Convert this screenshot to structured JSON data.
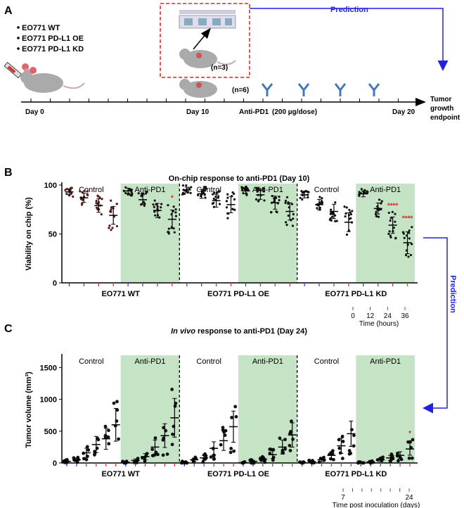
{
  "panelA": {
    "label": "A",
    "legend": [
      "EO771 WT",
      "EO771 PD-L1 OE",
      "EO771 PD-L1 KD"
    ],
    "n_chip": "(n=3)",
    "n_mice": "(n=6)",
    "prediction": "Prediction",
    "timeline": {
      "day0": "Day 0",
      "day10": "Day 10",
      "antipd1": "Anti-PD1",
      "dose": "(200 µg/dose)",
      "day20": "Day 20",
      "endpoint": [
        "Tumor",
        "growth",
        "endpoint"
      ]
    },
    "colors": {
      "accent": "#2222dd",
      "box": "#e02020",
      "treatment": "#c5e3c5"
    }
  },
  "side_prediction": "Prediction",
  "chart_data": [
    {
      "panel": "B",
      "type": "scatter",
      "title": "On-chip response to anti-PD1 (Day 10)",
      "ylabel": "Viability on chip (%)",
      "ylim": [
        0,
        100
      ],
      "yticks": [
        0,
        50,
        100
      ],
      "groups": [
        "EO771 WT",
        "EO771 PD-L1 OE",
        "EO771 PD-L1 KD"
      ],
      "conditions": [
        "Control",
        "Anti-PD1"
      ],
      "time_legend": {
        "ticks": [
          "0",
          "12",
          "24",
          "36"
        ],
        "label": "Time (hours)"
      },
      "series": [
        {
          "group": "EO771 WT",
          "condition": "Control",
          "means": [
            93,
            87,
            79,
            69
          ],
          "sig": [
            "",
            "",
            "",
            ""
          ]
        },
        {
          "group": "EO771 WT",
          "condition": "Anti-PD1",
          "means": [
            94,
            85,
            74,
            65
          ],
          "sig": [
            "",
            "",
            "",
            "*"
          ]
        },
        {
          "group": "EO771 PD-L1 OE",
          "condition": "Control",
          "means": [
            95,
            91,
            84,
            80
          ],
          "sig": [
            "",
            "",
            "",
            ""
          ]
        },
        {
          "group": "EO771 PD-L1 OE",
          "condition": "Anti-PD1",
          "means": [
            94,
            90,
            82,
            73
          ],
          "sig": [
            "",
            "",
            "",
            ""
          ]
        },
        {
          "group": "EO771 PD-L1 KD",
          "condition": "Control",
          "means": [
            90,
            80,
            73,
            62
          ],
          "sig": [
            "",
            "",
            "",
            ""
          ]
        },
        {
          "group": "EO771 PD-L1 KD",
          "condition": "Anti-PD1",
          "means": [
            91,
            76,
            59,
            41
          ],
          "sig": [
            "",
            "",
            "****",
            "****"
          ]
        }
      ]
    },
    {
      "panel": "C",
      "type": "scatter",
      "title_italic": "In vivo",
      "title": " response to anti-PD1 (Day 24)",
      "ylabel": "Tumor volume (mm³)",
      "ylim": [
        0,
        1700
      ],
      "yticks": [
        0,
        500,
        1000,
        1500
      ],
      "groups": [
        "EO771 WT",
        "EO771 PD-L1 OE",
        "EO771 PD-L1 KD"
      ],
      "conditions": [
        "Control",
        "Anti-PD1"
      ],
      "time_legend": {
        "ticks": [
          "7",
          "24"
        ],
        "label": "Time post inoculation (days)"
      },
      "series": [
        {
          "group": "EO771 WT",
          "condition": "Control",
          "means": [
            25,
            50,
            160,
            290,
            380,
            600
          ],
          "sig": [
            "",
            "",
            "",
            "",
            "",
            ""
          ]
        },
        {
          "group": "EO771 WT",
          "condition": "Anti-PD1",
          "means": [
            10,
            40,
            100,
            250,
            430,
            710
          ],
          "sig": [
            "",
            "",
            "",
            "",
            "",
            ""
          ]
        },
        {
          "group": "EO771 PD-L1 OE",
          "condition": "Control",
          "means": [
            10,
            50,
            80,
            230,
            350,
            570
          ],
          "sig": [
            "",
            "",
            "",
            "",
            "",
            ""
          ]
        },
        {
          "group": "EO771 PD-L1 OE",
          "condition": "Anti-PD1",
          "means": [
            5,
            25,
            60,
            130,
            250,
            440
          ],
          "sig": [
            "",
            "",
            "",
            "",
            "",
            ""
          ]
        },
        {
          "group": "EO771 PD-L1 KD",
          "condition": "Control",
          "means": [
            5,
            20,
            50,
            120,
            270,
            460
          ],
          "sig": [
            "",
            "",
            "",
            "",
            "",
            ""
          ]
        },
        {
          "group": "EO771 PD-L1 KD",
          "condition": "Anti-PD1",
          "means": [
            5,
            15,
            50,
            80,
            120,
            220
          ],
          "sig": [
            "",
            "",
            "",
            "",
            "",
            "*"
          ]
        }
      ]
    }
  ]
}
